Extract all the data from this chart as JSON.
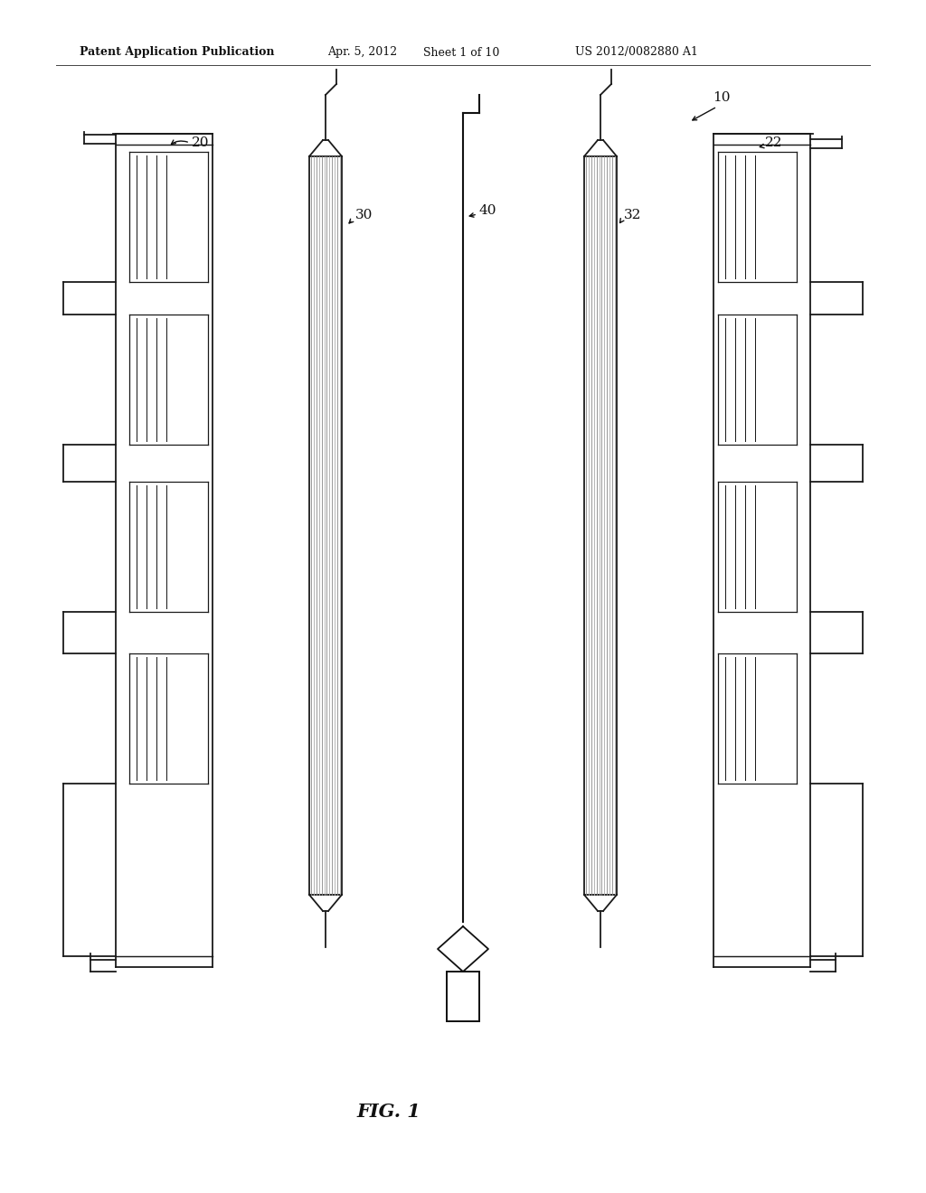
{
  "bg_color": "#ffffff",
  "header_text": "Patent Application Publication",
  "header_date": "Apr. 5, 2012",
  "header_sheet": "Sheet 1 of 10",
  "header_patent": "US 2012/0082880 A1",
  "fig_label": "FIG. 1",
  "label_10": "10",
  "label_20": "20",
  "label_22": "22",
  "label_30": "30",
  "label_32": "32",
  "label_40": "40",
  "line_color": "#1a1a1a",
  "gray_fill": "#c8c8c8"
}
